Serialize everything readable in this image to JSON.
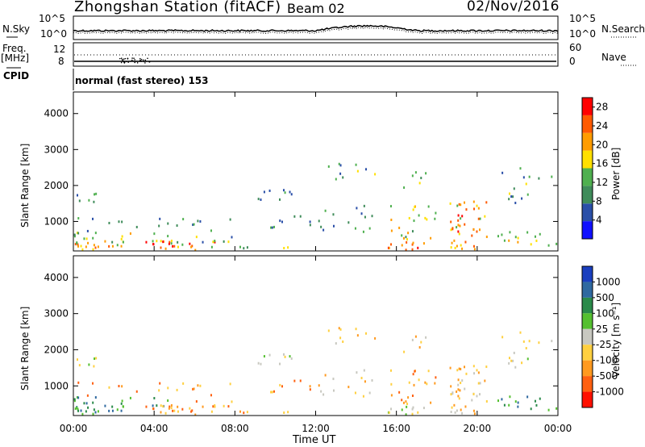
{
  "header": {
    "station": "Zhongshan Station (fitACF)",
    "beam": "Beam 02",
    "date": "02/Nov/2016"
  },
  "strips": {
    "nsky_label": "N.Sky",
    "nsearch_label": "N.Search",
    "nsky_ticks": [
      "10^5",
      "10^0"
    ],
    "nsearch_ticks": [
      "10^5",
      "10^0"
    ],
    "freq_label_1": "Freq.",
    "freq_label_2": "[MHz]",
    "freq_ticks": [
      "12",
      "8"
    ],
    "nave_label": "Nave",
    "nave_ticks": [
      "60",
      "0"
    ],
    "cpid_label": "CPID",
    "cpid_text": "normal (fast stereo) 153"
  },
  "colors": {
    "power_scale": [
      "#1010ff",
      "#2a4fa8",
      "#3f8c5a",
      "#4fb04f",
      "#ffe000",
      "#ff9c00",
      "#ff5a00",
      "#ff0000"
    ],
    "velocity_scale": [
      "#1a3fbf",
      "#2f69a0",
      "#2a8a4a",
      "#55c030",
      "#c8c8c0",
      "#ffd040",
      "#ff9a20",
      "#ff6010",
      "#ff1000"
    ]
  },
  "chart_data": [
    {
      "type": "heatmap",
      "name": "power",
      "ylabel": "Slant Range [km]",
      "xlabel": "",
      "x_ticks": [
        "00:00",
        "04:00",
        "08:00",
        "12:00",
        "16:00",
        "20:00",
        "00:00"
      ],
      "y_ticks": [
        1000,
        2000,
        3000,
        4000
      ],
      "ylim": [
        180,
        4600
      ],
      "xlim_hours": [
        0,
        24
      ],
      "colorbar_label": "Power [dB]",
      "colorbar_ticks": [
        4,
        8,
        12,
        16,
        20,
        24,
        28
      ],
      "colorbar_range": [
        0,
        30
      ]
    },
    {
      "type": "heatmap",
      "name": "velocity",
      "ylabel": "Slant Range [km]",
      "xlabel": "Time UT",
      "x_ticks": [
        "00:00",
        "04:00",
        "08:00",
        "12:00",
        "16:00",
        "20:00",
        "00:00"
      ],
      "y_ticks": [
        1000,
        2000,
        3000,
        4000
      ],
      "ylim": [
        180,
        4600
      ],
      "xlim_hours": [
        0,
        24
      ],
      "colorbar_label": "Velocity [m s⁻¹]",
      "colorbar_ticks": [
        "1000",
        "500",
        "100",
        "25",
        "-25",
        "-100",
        "-500",
        "-1000"
      ]
    }
  ]
}
